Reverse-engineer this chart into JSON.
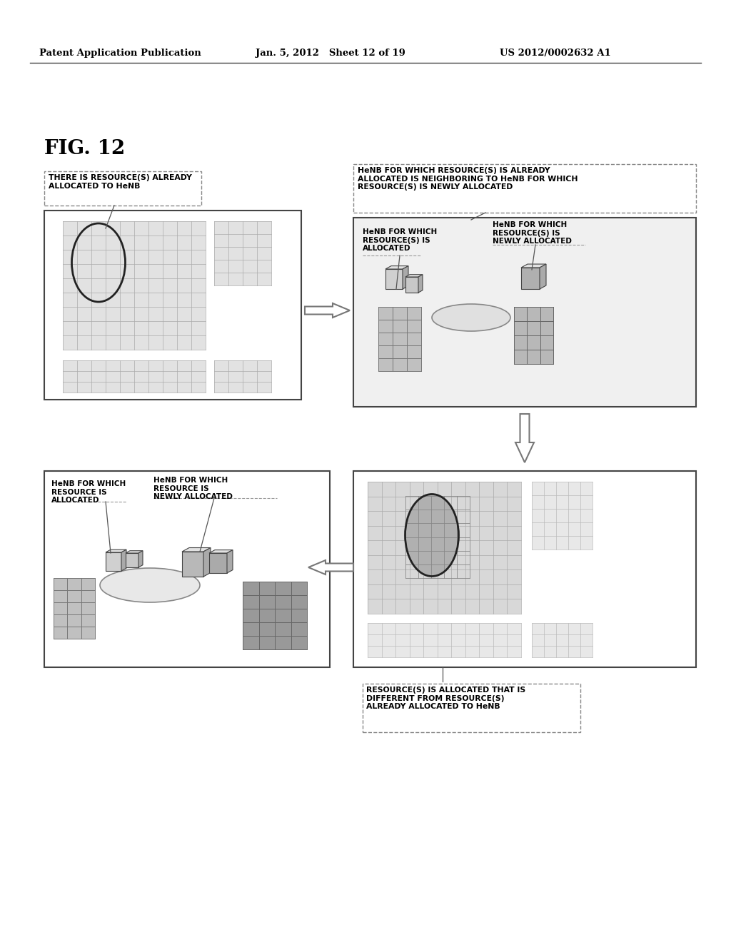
{
  "header_left": "Patent Application Publication",
  "header_mid": "Jan. 5, 2012   Sheet 12 of 19",
  "header_right": "US 2012/0002632 A1",
  "fig_label": "FIG. 12",
  "bg_color": "#ffffff",
  "text_color": "#000000",
  "label_box1": "THERE IS RESOURCE(S) ALREADY\nALLOCATED TO HeNB",
  "label_box2": "HeNB FOR WHICH RESOURCE(S) IS ALREADY\nALLOCATED IS NEIGHBORING TO HeNB FOR WHICH\nRESOURCE(S) IS NEWLY ALLOCATED",
  "label_box3_a": "HeNB FOR WHICH\nRESOURCE(S) IS\nALLOCATED",
  "label_box3_b": "HeNB FOR WHICH\nRESOURCE(S) IS\nNEWLY ALLOCATED",
  "label_box4_a": "HeNB FOR WHICH\nRESOURCE IS\nALLOCATED",
  "label_box4_b": "HeNB FOR WHICH\nRESOURCE IS\nNEWLY ALLOCATED",
  "label_box5": "RESOURCE(S) IS ALLOCATED THAT IS\nDIFFERENT FROM RESOURCE(S)\nALREADY ALLOCATED TO HeNB"
}
